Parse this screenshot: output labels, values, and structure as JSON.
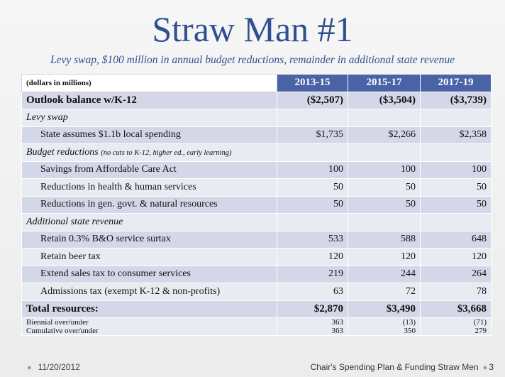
{
  "title": "Straw Man #1",
  "subtitle": "Levy swap, $100 million in annual budget reductions, remainder in additional state revenue",
  "table": {
    "units_label": "(dollars in millions)",
    "years": [
      "2013-15",
      "2015-17",
      "2017-19"
    ],
    "outlook": {
      "label": "Outlook balance w/K-12",
      "values": [
        "($2,507)",
        "($3,504)",
        "($3,739)"
      ]
    },
    "levy_swap": {
      "heading": "Levy swap",
      "row": {
        "label": "State assumes $1.1b local spending",
        "values": [
          "$1,735",
          "$2,266",
          "$2,358"
        ]
      }
    },
    "budget_reductions": {
      "heading": "Budget reductions",
      "note": "(no cuts to K-12, higher ed., early learning)",
      "rows": [
        {
          "label": "Savings from Affordable Care Act",
          "values": [
            "100",
            "100",
            "100"
          ]
        },
        {
          "label": "Reductions in health & human services",
          "values": [
            "50",
            "50",
            "50"
          ]
        },
        {
          "label": "Reductions in gen. govt. & natural resources",
          "values": [
            "50",
            "50",
            "50"
          ]
        }
      ]
    },
    "additional_revenue": {
      "heading": "Additional state revenue",
      "rows": [
        {
          "label": "Retain 0.3% B&O service surtax",
          "values": [
            "533",
            "588",
            "648"
          ]
        },
        {
          "label": "Retain beer tax",
          "values": [
            "120",
            "120",
            "120"
          ]
        },
        {
          "label": "Extend sales tax to consumer services",
          "values": [
            "219",
            "244",
            "264"
          ]
        },
        {
          "label": "Admissions tax (exempt K-12 & non-profits)",
          "values": [
            "63",
            "72",
            "78"
          ]
        }
      ]
    },
    "total": {
      "label": "Total resources:",
      "values": [
        "$2,870",
        "$3,490",
        "$3,668"
      ]
    },
    "biennial": {
      "label": "Biennial over/under",
      "values": [
        "363",
        "(13)",
        "(71)"
      ]
    },
    "cumulative": {
      "label": "Cumulative over/under",
      "values": [
        "363",
        "350",
        "279"
      ]
    }
  },
  "footer": {
    "date": "11/20/2012",
    "caption": "Chair's Spending Plan & Funding Straw Men",
    "page": "3"
  }
}
